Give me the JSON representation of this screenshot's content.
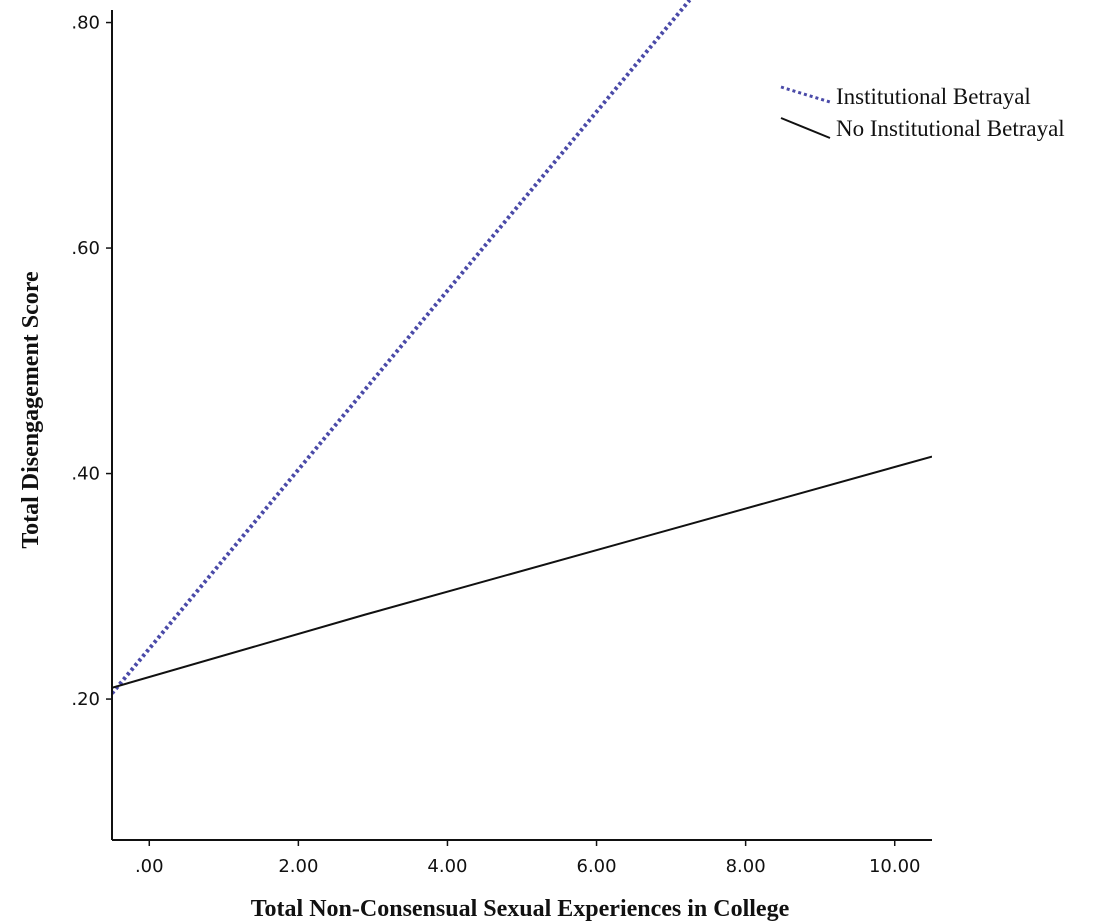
{
  "chart_data": {
    "type": "line",
    "xlabel": "Total Non-Consensual Sexual Experiences in College",
    "ylabel": "Total Disengagement Score",
    "xlim": [
      -0.5,
      10.5
    ],
    "ylim": [
      0.075,
      0.82
    ],
    "x_ticks": [
      {
        "value": 0,
        "label": ".00"
      },
      {
        "value": 2,
        "label": "2.00"
      },
      {
        "value": 4,
        "label": "4.00"
      },
      {
        "value": 6,
        "label": "6.00"
      },
      {
        "value": 8,
        "label": "8.00"
      },
      {
        "value": 10,
        "label": "10.00"
      }
    ],
    "y_ticks": [
      {
        "value": 0.2,
        "label": ".20"
      },
      {
        "value": 0.4,
        "label": ".40"
      },
      {
        "value": 0.6,
        "label": ".60"
      },
      {
        "value": 0.8,
        "label": ".80"
      }
    ],
    "grid": false,
    "legend_position": "top-right",
    "series": [
      {
        "name": "Institutional Betrayal",
        "style": "dotted",
        "color": "#4a4aa8",
        "x": [
          -0.5,
          2.9,
          7.25
        ],
        "y": [
          0.205,
          0.475,
          0.82
        ]
      },
      {
        "name": "No Institutional Betrayal",
        "style": "solid",
        "color": "#111111",
        "x": [
          -0.5,
          2.9,
          10.5
        ],
        "y": [
          0.21,
          0.275,
          0.415
        ]
      }
    ]
  }
}
